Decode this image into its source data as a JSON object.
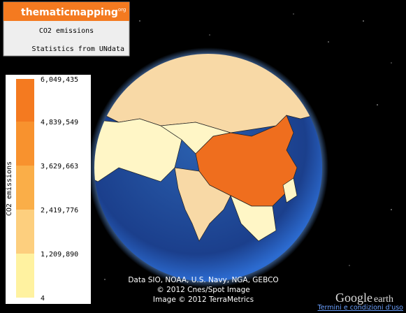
{
  "header": {
    "logo": {
      "main": "thematicmapping",
      "suffix": "org"
    },
    "title": "CO2 emissions",
    "source": "Statistics from UNdata"
  },
  "legend": {
    "title": "CO2 emissions",
    "labels": [
      "6,049,435",
      "4,839,549",
      "3,629,663",
      "2,419,776",
      "1,209,890",
      "4"
    ]
  },
  "attribution": [
    "Data SIO, NOAA, U.S. Navy, NGA, GEBCO",
    "© 2012 Cnes/Spot Image",
    "Image © 2012 TerraMetrics"
  ],
  "footer": {
    "brand_main": "Google",
    "brand_suffix": "earth",
    "terms": "Termini e condizioni d'uso"
  }
}
